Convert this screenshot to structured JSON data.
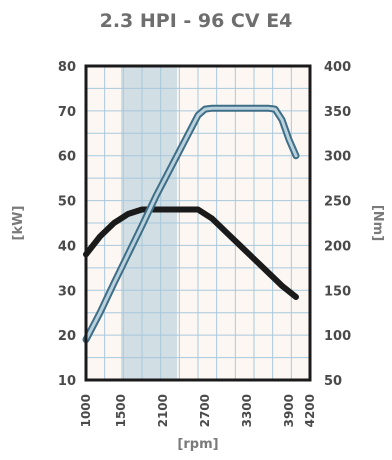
{
  "chart_data": {
    "type": "line",
    "title": "2.3 HPI - 96 CV E4",
    "xlabel": "[rpm]",
    "ylabel_left": "[kW]",
    "ylabel_right": "[Nm]",
    "xlim": [
      1000,
      4200
    ],
    "ylim_left": [
      10,
      80
    ],
    "ylim_right": [
      50,
      400
    ],
    "x_ticks": [
      "1000",
      "1500",
      "2100",
      "2700",
      "3300",
      "3900",
      "4200"
    ],
    "y_left_ticks": [
      "10",
      "20",
      "30",
      "40",
      "50",
      "60",
      "70",
      "80"
    ],
    "y_right_ticks": [
      "50",
      "100",
      "150",
      "200",
      "250",
      "300",
      "350",
      "400"
    ],
    "highlight_band": [
      1500,
      2300
    ],
    "grid": true,
    "series": [
      {
        "axis": "left",
        "color": "#1a1a1a",
        "x": [
          1000,
          1200,
          1400,
          1600,
          1800,
          2000,
          2200,
          2400,
          2600,
          2800,
          3000,
          3200,
          3400,
          3600,
          3800,
          4000
        ],
        "y": [
          38,
          42,
          45,
          47,
          48,
          48,
          48,
          48,
          48,
          46,
          43,
          40,
          37,
          34,
          31,
          28.5
        ]
      },
      {
        "axis": "right",
        "color": "#5b8ea8",
        "x": [
          1000,
          1200,
          1400,
          1600,
          1800,
          2000,
          2200,
          2400,
          2600,
          2700,
          2800,
          3000,
          3200,
          3400,
          3600,
          3700,
          3800,
          3900,
          4000
        ],
        "y": [
          95,
          125,
          158,
          190,
          222,
          255,
          285,
          315,
          345,
          352,
          353,
          353,
          353,
          353,
          353,
          352,
          340,
          318,
          300
        ]
      }
    ]
  }
}
